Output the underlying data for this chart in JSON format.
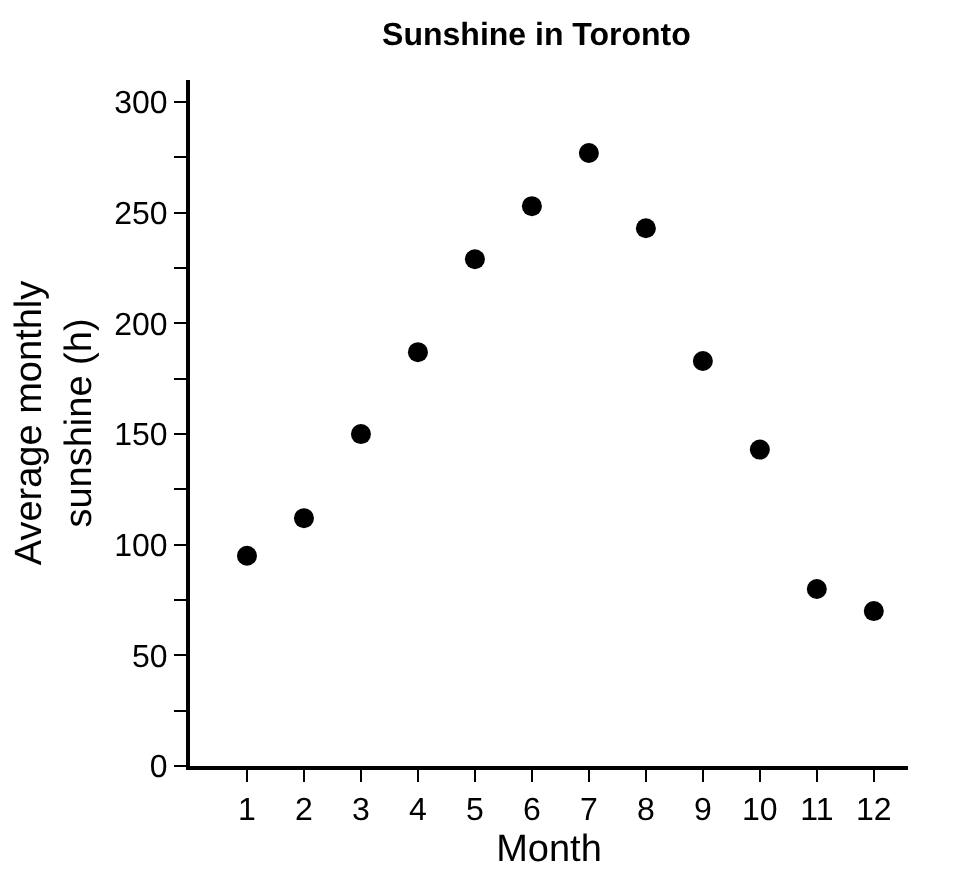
{
  "chart_data": {
    "type": "scatter",
    "title": "Sunshine in Toronto",
    "xlabel": "Month",
    "ylabel": "Average monthly\nsunshine (h)",
    "x": [
      1,
      2,
      3,
      4,
      5,
      6,
      7,
      8,
      9,
      10,
      11,
      12
    ],
    "series": [
      {
        "color": "#000000",
        "values": [
          95,
          112,
          150,
          187,
          229,
          253,
          277,
          243,
          183,
          143,
          80,
          70
        ]
      }
    ],
    "xlim": [
      0,
      12.6
    ],
    "ylim": [
      0,
      310
    ],
    "xticks": [
      1,
      2,
      3,
      4,
      5,
      6,
      7,
      8,
      9,
      10,
      11,
      12
    ],
    "yticks": [
      0,
      {
        "value": 25,
        "label": null
      },
      50,
      {
        "value": 75,
        "label": null
      },
      100,
      {
        "value": 125,
        "label": null
      },
      150,
      {
        "value": 175,
        "label": null
      },
      200,
      {
        "value": 225,
        "label": null
      },
      250,
      {
        "value": 275,
        "label": null
      },
      300
    ],
    "marker": "circle"
  }
}
